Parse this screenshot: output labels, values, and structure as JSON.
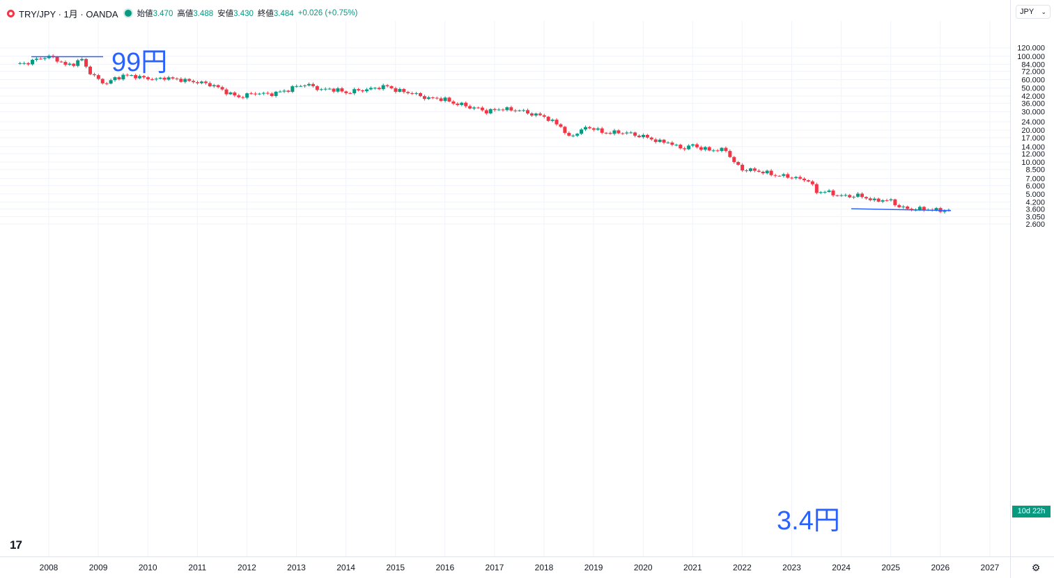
{
  "header": {
    "symbol": "TRY/JPY · 1月 · OANDA",
    "open_label": "始値",
    "open_value": "3.470",
    "high_label": "高値",
    "high_value": "3.488",
    "low_label": "安値",
    "low_value": "3.430",
    "close_label": "終値",
    "close_value": "3.484",
    "change": "+0.026 (+0.75%)"
  },
  "currency_selector": "JPY",
  "countdown": "10d 22h",
  "annotations": {
    "high": "99円",
    "low": "3.4円"
  },
  "colors": {
    "up": "#089981",
    "down": "#f23645",
    "annotation": "#2962ff",
    "grid": "#f0f3fa"
  },
  "chart_data": {
    "type": "candlestick",
    "scale": "log",
    "interval": "monthly",
    "ylim": [
      2.45,
      130
    ],
    "xlim": [
      2007.45,
      2027.6
    ],
    "y_ticks": [
      "120.000",
      "100.000",
      "84.000",
      "72.000",
      "60.000",
      "50.000",
      "42.000",
      "36.000",
      "30.000",
      "24.000",
      "20.000",
      "17.000",
      "14.000",
      "12.000",
      "10.000",
      "8.500",
      "7.000",
      "6.000",
      "5.000",
      "4.200",
      "3.600",
      "3.050",
      "2.600"
    ],
    "x_ticks": [
      "2008",
      "2009",
      "2010",
      "2011",
      "2012",
      "2013",
      "2014",
      "2015",
      "2016",
      "2017",
      "2018",
      "2019",
      "2020",
      "2021",
      "2022",
      "2023",
      "2024",
      "2025",
      "2026",
      "2027"
    ],
    "grid": true,
    "series": [
      {
        "name": "TRY/JPY",
        "closes": [
          [
            2007.5,
            85
          ],
          [
            2007.67,
            90
          ],
          [
            2007.83,
            96
          ],
          [
            2008.0,
            99
          ],
          [
            2008.17,
            93
          ],
          [
            2008.33,
            82
          ],
          [
            2008.5,
            85
          ],
          [
            2008.67,
            93
          ],
          [
            2008.83,
            70
          ],
          [
            2009.0,
            60
          ],
          [
            2009.17,
            55
          ],
          [
            2009.33,
            62
          ],
          [
            2009.5,
            65
          ],
          [
            2009.67,
            66
          ],
          [
            2009.83,
            63
          ],
          [
            2010.0,
            62
          ],
          [
            2010.17,
            60
          ],
          [
            2010.33,
            63
          ],
          [
            2010.5,
            61
          ],
          [
            2010.67,
            60
          ],
          [
            2010.83,
            58
          ],
          [
            2011.0,
            57
          ],
          [
            2011.17,
            55
          ],
          [
            2011.33,
            53
          ],
          [
            2011.5,
            48
          ],
          [
            2011.67,
            44
          ],
          [
            2011.83,
            41
          ],
          [
            2012.0,
            43
          ],
          [
            2012.17,
            45
          ],
          [
            2012.33,
            44
          ],
          [
            2012.5,
            44
          ],
          [
            2012.67,
            46
          ],
          [
            2012.83,
            48
          ],
          [
            2013.0,
            52
          ],
          [
            2013.17,
            54
          ],
          [
            2013.33,
            52
          ],
          [
            2013.5,
            48
          ],
          [
            2013.67,
            49
          ],
          [
            2013.83,
            48
          ],
          [
            2014.0,
            45
          ],
          [
            2014.17,
            47
          ],
          [
            2014.33,
            48
          ],
          [
            2014.5,
            49
          ],
          [
            2014.67,
            51
          ],
          [
            2014.83,
            52
          ],
          [
            2015.0,
            48
          ],
          [
            2015.17,
            46
          ],
          [
            2015.33,
            45
          ],
          [
            2015.5,
            42
          ],
          [
            2015.67,
            40
          ],
          [
            2015.83,
            40
          ],
          [
            2016.0,
            39
          ],
          [
            2016.17,
            36
          ],
          [
            2016.33,
            35
          ],
          [
            2016.5,
            33
          ],
          [
            2016.67,
            32
          ],
          [
            2016.83,
            30
          ],
          [
            2017.0,
            31
          ],
          [
            2017.17,
            32
          ],
          [
            2017.33,
            31
          ],
          [
            2017.5,
            31
          ],
          [
            2017.67,
            29
          ],
          [
            2017.83,
            28
          ],
          [
            2018.0,
            27
          ],
          [
            2018.17,
            24
          ],
          [
            2018.33,
            22
          ],
          [
            2018.5,
            17
          ],
          [
            2018.67,
            19
          ],
          [
            2018.83,
            21
          ],
          [
            2019.0,
            21
          ],
          [
            2019.17,
            19
          ],
          [
            2019.33,
            19
          ],
          [
            2019.5,
            19
          ],
          [
            2019.67,
            19
          ],
          [
            2019.83,
            18
          ],
          [
            2020.0,
            17.5
          ],
          [
            2020.17,
            16.5
          ],
          [
            2020.33,
            15.5
          ],
          [
            2020.5,
            15.5
          ],
          [
            2020.67,
            14
          ],
          [
            2020.83,
            13.5
          ],
          [
            2021.0,
            14.5
          ],
          [
            2021.17,
            13.5
          ],
          [
            2021.33,
            13
          ],
          [
            2021.5,
            13
          ],
          [
            2021.67,
            13
          ],
          [
            2021.83,
            10
          ],
          [
            2022.0,
            8.5
          ],
          [
            2022.17,
            8.4
          ],
          [
            2022.33,
            8.2
          ],
          [
            2022.5,
            7.9
          ],
          [
            2022.67,
            7.5
          ],
          [
            2022.83,
            7.4
          ],
          [
            2023.0,
            7.2
          ],
          [
            2023.17,
            6.9
          ],
          [
            2023.33,
            6.8
          ],
          [
            2023.5,
            5.2
          ],
          [
            2023.67,
            5.3
          ],
          [
            2023.83,
            5.0
          ],
          [
            2024.0,
            4.8
          ],
          [
            2024.17,
            4.75
          ],
          [
            2024.33,
            4.85
          ],
          [
            2024.5,
            4.6
          ],
          [
            2024.67,
            4.3
          ],
          [
            2024.83,
            4.4
          ],
          [
            2025.0,
            4.3
          ],
          [
            2025.17,
            3.8
          ],
          [
            2025.33,
            3.6
          ],
          [
            2025.5,
            3.6
          ],
          [
            2025.67,
            3.6
          ],
          [
            2025.83,
            3.55
          ],
          [
            2026.0,
            3.5
          ],
          [
            2026.17,
            3.48
          ],
          [
            2026.25,
            3.484
          ]
        ]
      }
    ]
  }
}
